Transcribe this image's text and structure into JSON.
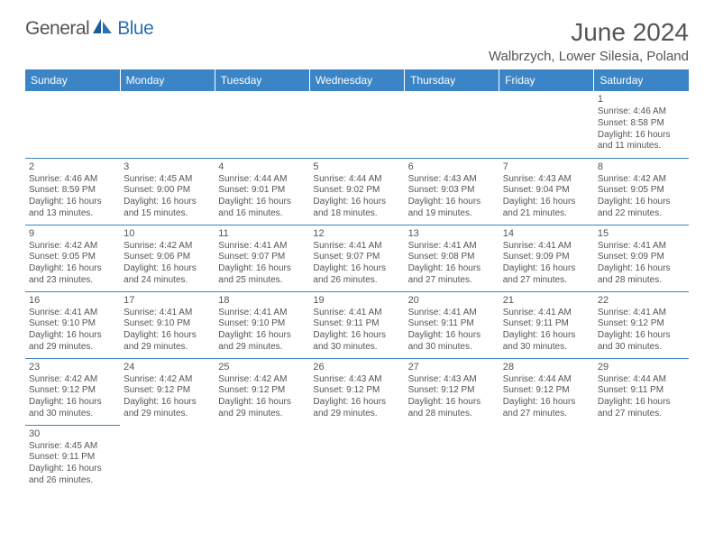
{
  "brand": {
    "part1": "General",
    "part2": "Blue"
  },
  "header": {
    "title": "June 2024",
    "location": "Walbrzych, Lower Silesia, Poland"
  },
  "colors": {
    "header_bg": "#3b85c6",
    "header_text": "#ffffff",
    "cell_border": "#3b85c6",
    "body_text": "#555555",
    "brand_blue": "#2f6fb0"
  },
  "daysOfWeek": [
    "Sunday",
    "Monday",
    "Tuesday",
    "Wednesday",
    "Thursday",
    "Friday",
    "Saturday"
  ],
  "weeks": [
    [
      null,
      null,
      null,
      null,
      null,
      null,
      {
        "n": "1",
        "sr": "Sunrise: 4:46 AM",
        "ss": "Sunset: 8:58 PM",
        "d1": "Daylight: 16 hours",
        "d2": "and 11 minutes."
      }
    ],
    [
      {
        "n": "2",
        "sr": "Sunrise: 4:46 AM",
        "ss": "Sunset: 8:59 PM",
        "d1": "Daylight: 16 hours",
        "d2": "and 13 minutes."
      },
      {
        "n": "3",
        "sr": "Sunrise: 4:45 AM",
        "ss": "Sunset: 9:00 PM",
        "d1": "Daylight: 16 hours",
        "d2": "and 15 minutes."
      },
      {
        "n": "4",
        "sr": "Sunrise: 4:44 AM",
        "ss": "Sunset: 9:01 PM",
        "d1": "Daylight: 16 hours",
        "d2": "and 16 minutes."
      },
      {
        "n": "5",
        "sr": "Sunrise: 4:44 AM",
        "ss": "Sunset: 9:02 PM",
        "d1": "Daylight: 16 hours",
        "d2": "and 18 minutes."
      },
      {
        "n": "6",
        "sr": "Sunrise: 4:43 AM",
        "ss": "Sunset: 9:03 PM",
        "d1": "Daylight: 16 hours",
        "d2": "and 19 minutes."
      },
      {
        "n": "7",
        "sr": "Sunrise: 4:43 AM",
        "ss": "Sunset: 9:04 PM",
        "d1": "Daylight: 16 hours",
        "d2": "and 21 minutes."
      },
      {
        "n": "8",
        "sr": "Sunrise: 4:42 AM",
        "ss": "Sunset: 9:05 PM",
        "d1": "Daylight: 16 hours",
        "d2": "and 22 minutes."
      }
    ],
    [
      {
        "n": "9",
        "sr": "Sunrise: 4:42 AM",
        "ss": "Sunset: 9:05 PM",
        "d1": "Daylight: 16 hours",
        "d2": "and 23 minutes."
      },
      {
        "n": "10",
        "sr": "Sunrise: 4:42 AM",
        "ss": "Sunset: 9:06 PM",
        "d1": "Daylight: 16 hours",
        "d2": "and 24 minutes."
      },
      {
        "n": "11",
        "sr": "Sunrise: 4:41 AM",
        "ss": "Sunset: 9:07 PM",
        "d1": "Daylight: 16 hours",
        "d2": "and 25 minutes."
      },
      {
        "n": "12",
        "sr": "Sunrise: 4:41 AM",
        "ss": "Sunset: 9:07 PM",
        "d1": "Daylight: 16 hours",
        "d2": "and 26 minutes."
      },
      {
        "n": "13",
        "sr": "Sunrise: 4:41 AM",
        "ss": "Sunset: 9:08 PM",
        "d1": "Daylight: 16 hours",
        "d2": "and 27 minutes."
      },
      {
        "n": "14",
        "sr": "Sunrise: 4:41 AM",
        "ss": "Sunset: 9:09 PM",
        "d1": "Daylight: 16 hours",
        "d2": "and 27 minutes."
      },
      {
        "n": "15",
        "sr": "Sunrise: 4:41 AM",
        "ss": "Sunset: 9:09 PM",
        "d1": "Daylight: 16 hours",
        "d2": "and 28 minutes."
      }
    ],
    [
      {
        "n": "16",
        "sr": "Sunrise: 4:41 AM",
        "ss": "Sunset: 9:10 PM",
        "d1": "Daylight: 16 hours",
        "d2": "and 29 minutes."
      },
      {
        "n": "17",
        "sr": "Sunrise: 4:41 AM",
        "ss": "Sunset: 9:10 PM",
        "d1": "Daylight: 16 hours",
        "d2": "and 29 minutes."
      },
      {
        "n": "18",
        "sr": "Sunrise: 4:41 AM",
        "ss": "Sunset: 9:10 PM",
        "d1": "Daylight: 16 hours",
        "d2": "and 29 minutes."
      },
      {
        "n": "19",
        "sr": "Sunrise: 4:41 AM",
        "ss": "Sunset: 9:11 PM",
        "d1": "Daylight: 16 hours",
        "d2": "and 30 minutes."
      },
      {
        "n": "20",
        "sr": "Sunrise: 4:41 AM",
        "ss": "Sunset: 9:11 PM",
        "d1": "Daylight: 16 hours",
        "d2": "and 30 minutes."
      },
      {
        "n": "21",
        "sr": "Sunrise: 4:41 AM",
        "ss": "Sunset: 9:11 PM",
        "d1": "Daylight: 16 hours",
        "d2": "and 30 minutes."
      },
      {
        "n": "22",
        "sr": "Sunrise: 4:41 AM",
        "ss": "Sunset: 9:12 PM",
        "d1": "Daylight: 16 hours",
        "d2": "and 30 minutes."
      }
    ],
    [
      {
        "n": "23",
        "sr": "Sunrise: 4:42 AM",
        "ss": "Sunset: 9:12 PM",
        "d1": "Daylight: 16 hours",
        "d2": "and 30 minutes."
      },
      {
        "n": "24",
        "sr": "Sunrise: 4:42 AM",
        "ss": "Sunset: 9:12 PM",
        "d1": "Daylight: 16 hours",
        "d2": "and 29 minutes."
      },
      {
        "n": "25",
        "sr": "Sunrise: 4:42 AM",
        "ss": "Sunset: 9:12 PM",
        "d1": "Daylight: 16 hours",
        "d2": "and 29 minutes."
      },
      {
        "n": "26",
        "sr": "Sunrise: 4:43 AM",
        "ss": "Sunset: 9:12 PM",
        "d1": "Daylight: 16 hours",
        "d2": "and 29 minutes."
      },
      {
        "n": "27",
        "sr": "Sunrise: 4:43 AM",
        "ss": "Sunset: 9:12 PM",
        "d1": "Daylight: 16 hours",
        "d2": "and 28 minutes."
      },
      {
        "n": "28",
        "sr": "Sunrise: 4:44 AM",
        "ss": "Sunset: 9:12 PM",
        "d1": "Daylight: 16 hours",
        "d2": "and 27 minutes."
      },
      {
        "n": "29",
        "sr": "Sunrise: 4:44 AM",
        "ss": "Sunset: 9:11 PM",
        "d1": "Daylight: 16 hours",
        "d2": "and 27 minutes."
      }
    ],
    [
      {
        "n": "30",
        "sr": "Sunrise: 4:45 AM",
        "ss": "Sunset: 9:11 PM",
        "d1": "Daylight: 16 hours",
        "d2": "and 26 minutes."
      },
      null,
      null,
      null,
      null,
      null,
      null
    ]
  ]
}
